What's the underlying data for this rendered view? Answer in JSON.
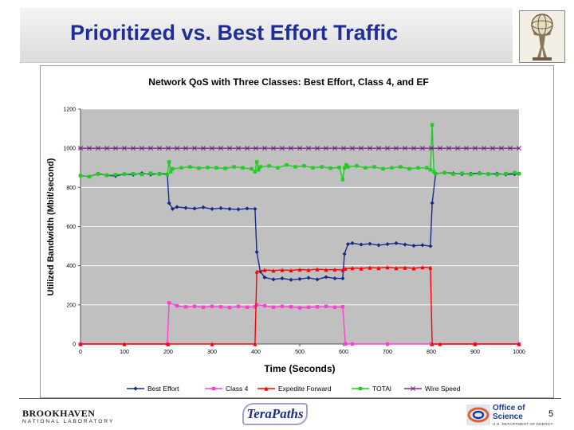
{
  "slide": {
    "title": "Prioritized vs. Best Effort Traffic",
    "page_number": "5"
  },
  "logos": {
    "brookhaven": "BROOKHAVEN",
    "brookhaven_sub": "NATIONAL LABORATORY",
    "terapaths": "TeraPaths",
    "doe_line1": "Office of",
    "doe_line2": "Science",
    "doe_sub": "U.S. DEPARTMENT OF ENERGY"
  },
  "colors": {
    "title": "#1f2d9a",
    "plot_background": "#c0c0c0"
  },
  "chart_data": {
    "type": "line",
    "title": "Network QoS with Three Classes: Best Effort, Class 4, and EF",
    "xlabel": "Time (Seconds)",
    "ylabel": "Utilized Bandwidth (Mbit/second)",
    "xlim": [
      0,
      1000
    ],
    "ylim": [
      0,
      1200
    ],
    "x_ticks": [
      0,
      100,
      200,
      300,
      400,
      500,
      600,
      700,
      800,
      900,
      1000
    ],
    "y_ticks": [
      0,
      200,
      400,
      600,
      800,
      1000,
      1200
    ],
    "grid": "horizontal",
    "legend_position": "bottom",
    "series": [
      {
        "name": "Best Effort",
        "color": "#1a2a8c",
        "marker": "diamond",
        "x": [
          0,
          20,
          40,
          60,
          80,
          100,
          120,
          140,
          160,
          180,
          198,
          202,
          210,
          220,
          240,
          260,
          280,
          300,
          320,
          340,
          360,
          380,
          398,
          402,
          410,
          420,
          440,
          460,
          480,
          500,
          520,
          540,
          560,
          580,
          598,
          602,
          610,
          620,
          640,
          660,
          680,
          700,
          720,
          740,
          760,
          780,
          798,
          802,
          810,
          830,
          850,
          870,
          890,
          910,
          930,
          950,
          970,
          990,
          1000
        ],
        "y": [
          860,
          855,
          870,
          862,
          858,
          868,
          865,
          872,
          866,
          870,
          868,
          720,
          690,
          700,
          695,
          692,
          698,
          690,
          694,
          690,
          688,
          692,
          690,
          470,
          370,
          340,
          330,
          335,
          328,
          332,
          338,
          330,
          342,
          335,
          335,
          460,
          510,
          515,
          508,
          512,
          505,
          510,
          515,
          508,
          502,
          505,
          500,
          720,
          870,
          875,
          872,
          868,
          870,
          873,
          868,
          870,
          866,
          868,
          870
        ]
      },
      {
        "name": "Class 4",
        "color": "#ff3fd2",
        "marker": "square",
        "x": [
          0,
          198,
          202,
          220,
          240,
          260,
          280,
          300,
          320,
          340,
          360,
          380,
          398,
          402,
          420,
          440,
          460,
          480,
          500,
          520,
          540,
          560,
          580,
          598,
          604,
          620,
          700,
          800,
          900,
          1000
        ],
        "y": [
          0,
          0,
          210,
          195,
          190,
          192,
          188,
          192,
          190,
          186,
          192,
          188,
          190,
          200,
          195,
          188,
          192,
          190,
          185,
          188,
          190,
          192,
          188,
          190,
          0,
          0,
          0,
          0,
          0,
          0
        ]
      },
      {
        "name": "Expedite Forward",
        "color": "#ff0000",
        "marker": "triangle",
        "x": [
          0,
          100,
          200,
          300,
          398,
          402,
          420,
          440,
          460,
          480,
          500,
          520,
          540,
          560,
          580,
          598,
          604,
          620,
          640,
          660,
          680,
          700,
          720,
          740,
          760,
          780,
          798,
          802,
          820,
          900,
          1000
        ],
        "y": [
          0,
          0,
          0,
          0,
          0,
          370,
          378,
          375,
          378,
          376,
          380,
          378,
          382,
          379,
          380,
          378,
          385,
          388,
          386,
          390,
          388,
          392,
          388,
          390,
          387,
          392,
          390,
          0,
          0,
          0,
          0
        ]
      },
      {
        "name": "TOTAl",
        "color": "#22cc22",
        "marker": "square",
        "x": [
          0,
          20,
          40,
          60,
          80,
          100,
          120,
          140,
          160,
          180,
          198,
          202,
          206,
          210,
          230,
          250,
          270,
          290,
          310,
          330,
          350,
          370,
          390,
          398,
          402,
          406,
          410,
          430,
          450,
          470,
          490,
          510,
          530,
          550,
          570,
          590,
          598,
          602,
          606,
          610,
          630,
          650,
          670,
          690,
          710,
          730,
          750,
          770,
          790,
          798,
          802,
          806,
          810,
          830,
          850,
          870,
          890,
          910,
          930,
          950,
          970,
          990,
          1000
        ],
        "y": [
          860,
          855,
          868,
          862,
          865,
          868,
          870,
          866,
          872,
          868,
          865,
          930,
          880,
          895,
          900,
          905,
          898,
          902,
          900,
          897,
          905,
          900,
          895,
          880,
          930,
          890,
          905,
          910,
          900,
          915,
          905,
          910,
          900,
          905,
          898,
          902,
          840,
          900,
          915,
          905,
          910,
          900,
          905,
          895,
          900,
          905,
          895,
          900,
          900,
          890,
          1120,
          880,
          870,
          875,
          868,
          872,
          866,
          870,
          868,
          865,
          870,
          875,
          870
        ]
      },
      {
        "name": "Wire Speed",
        "color": "#7a2a8c",
        "marker": "x",
        "x": [
          0,
          1000
        ],
        "y": [
          1000,
          1000
        ]
      }
    ]
  }
}
